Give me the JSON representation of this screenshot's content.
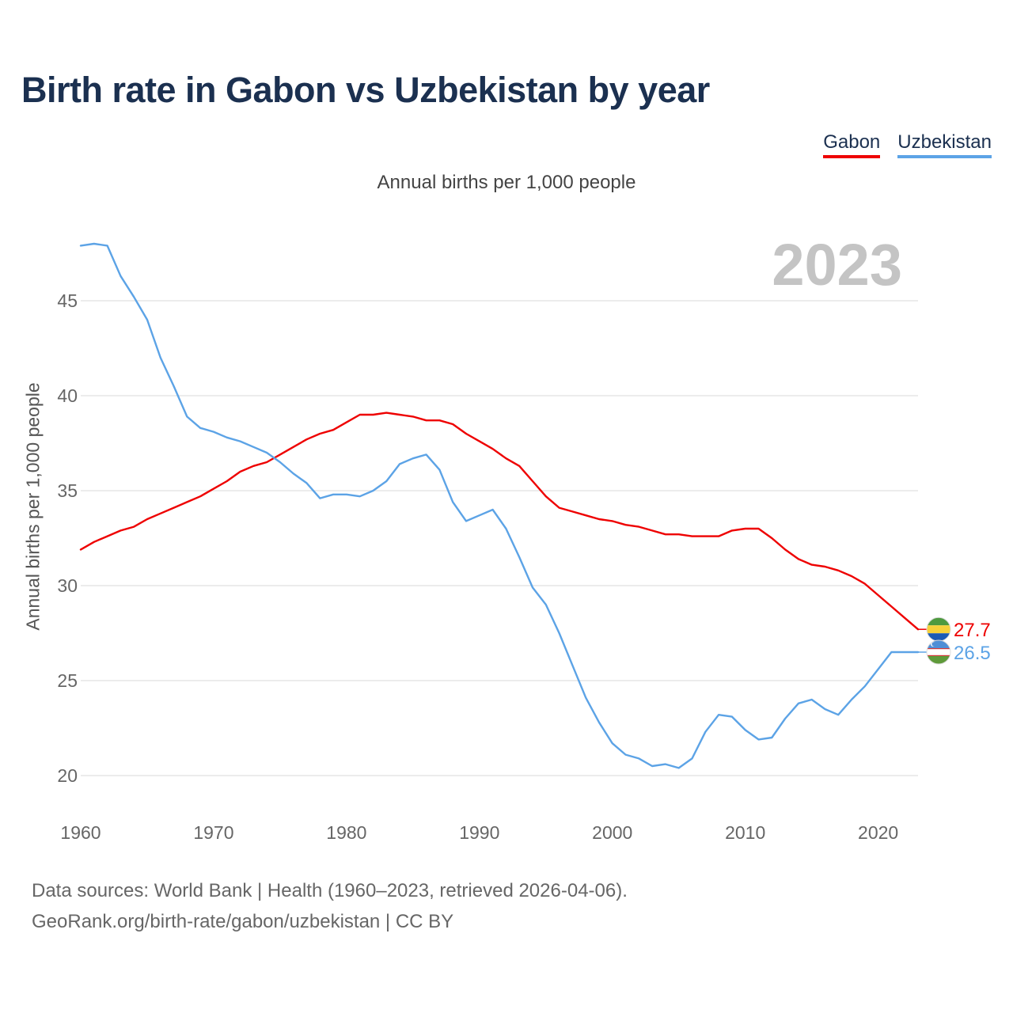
{
  "title": "Birth rate in Gabon vs Uzbekistan by year",
  "subtitle": "Annual births per 1,000 people",
  "legend": [
    {
      "label": "Gabon",
      "color": "#ee0000"
    },
    {
      "label": "Uzbekistan",
      "color": "#5ca3e6"
    }
  ],
  "year_display": "2023",
  "footer": {
    "line1": "Data sources: World Bank | Health (1960–2023, retrieved 2026-04-06).",
    "line2": "GeoRank.org/birth-rate/gabon/uzbekistan | CC BY"
  },
  "chart_data": {
    "type": "line",
    "title": "Birth rate in Gabon vs Uzbekistan by year",
    "xlabel": "",
    "ylabel": "Annual births per 1,000 people",
    "xlim": [
      1960,
      2023
    ],
    "ylim": [
      18.5,
      48.5
    ],
    "x_ticks": [
      1960,
      1970,
      1980,
      1990,
      2000,
      2010,
      2020
    ],
    "y_ticks": [
      20,
      25,
      30,
      35,
      40,
      45
    ],
    "grid": true,
    "legend_position": "top-right",
    "x": [
      1960,
      1961,
      1962,
      1963,
      1964,
      1965,
      1966,
      1967,
      1968,
      1969,
      1970,
      1971,
      1972,
      1973,
      1974,
      1975,
      1976,
      1977,
      1978,
      1979,
      1980,
      1981,
      1982,
      1983,
      1984,
      1985,
      1986,
      1987,
      1988,
      1989,
      1990,
      1991,
      1992,
      1993,
      1994,
      1995,
      1996,
      1997,
      1998,
      1999,
      2000,
      2001,
      2002,
      2003,
      2004,
      2005,
      2006,
      2007,
      2008,
      2009,
      2010,
      2011,
      2012,
      2013,
      2014,
      2015,
      2016,
      2017,
      2018,
      2019,
      2020,
      2021,
      2022,
      2023
    ],
    "series": [
      {
        "name": "Gabon",
        "color": "#ee0000",
        "end_label": "27.7",
        "values": [
          31.9,
          32.3,
          32.6,
          32.9,
          33.1,
          33.5,
          33.8,
          34.1,
          34.4,
          34.7,
          35.1,
          35.5,
          36.0,
          36.3,
          36.5,
          36.9,
          37.3,
          37.7,
          38.0,
          38.2,
          38.6,
          39.0,
          39.0,
          39.1,
          39.0,
          38.9,
          38.7,
          38.7,
          38.5,
          38.0,
          37.6,
          37.2,
          36.7,
          36.3,
          35.5,
          34.7,
          34.1,
          33.9,
          33.7,
          33.5,
          33.4,
          33.2,
          33.1,
          32.9,
          32.7,
          32.7,
          32.6,
          32.6,
          32.6,
          32.9,
          33.0,
          33.0,
          32.5,
          31.9,
          31.4,
          31.1,
          31.0,
          30.8,
          30.5,
          30.1,
          29.5,
          28.9,
          28.3,
          27.7
        ]
      },
      {
        "name": "Uzbekistan",
        "color": "#5ca3e6",
        "end_label": "26.5",
        "values": [
          47.9,
          48.0,
          47.9,
          46.3,
          45.2,
          44.0,
          42.0,
          40.5,
          38.9,
          38.3,
          38.1,
          37.8,
          37.6,
          37.3,
          37.0,
          36.5,
          35.9,
          35.4,
          34.6,
          34.8,
          34.8,
          34.7,
          35.0,
          35.5,
          36.4,
          36.7,
          36.9,
          36.1,
          34.4,
          33.4,
          33.7,
          34.0,
          33.0,
          31.5,
          29.9,
          29.0,
          27.5,
          25.8,
          24.1,
          22.8,
          21.7,
          21.1,
          20.9,
          20.5,
          20.6,
          20.4,
          20.9,
          22.3,
          23.2,
          23.1,
          22.4,
          21.9,
          22.0,
          23.0,
          23.8,
          24.0,
          23.5,
          23.2,
          24.0,
          24.7,
          25.6,
          26.5,
          26.5,
          26.5
        ]
      }
    ]
  }
}
